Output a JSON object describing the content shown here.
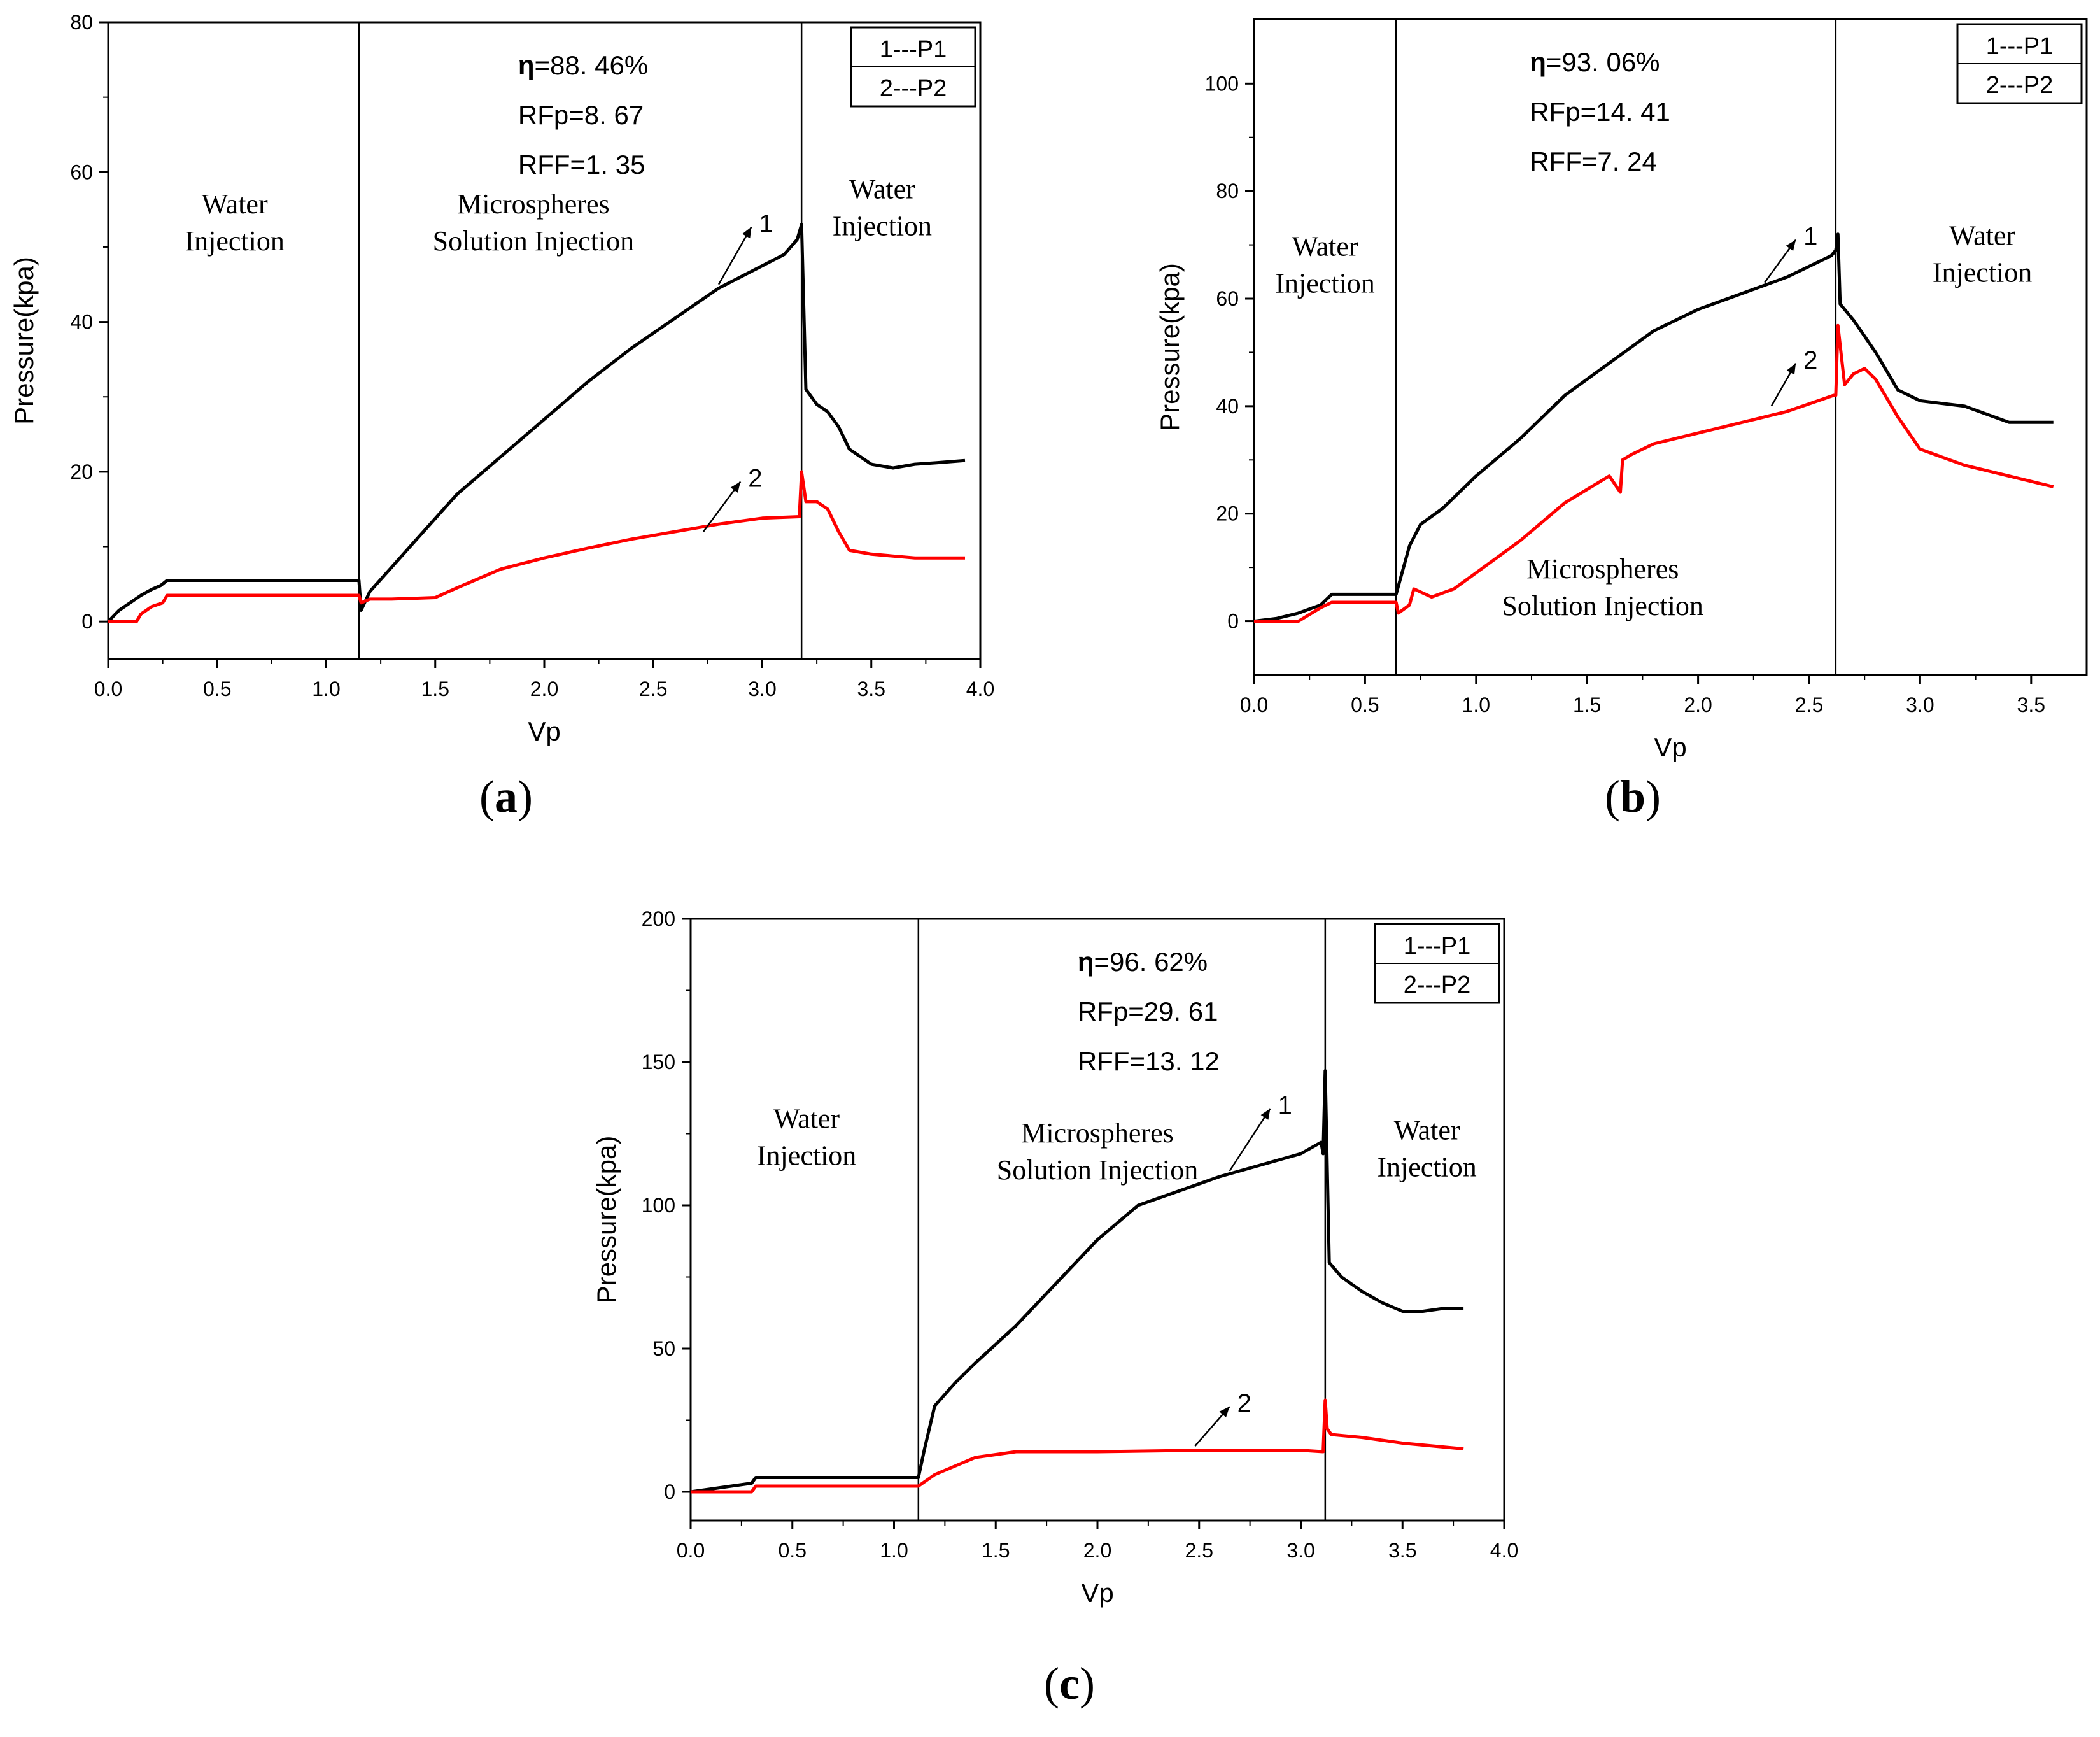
{
  "chart_data": [
    {
      "id": "a",
      "type": "line",
      "panel_label": "a",
      "xlabel": "Vp",
      "ylabel": "Pressure(kpa)",
      "xlim": [
        0,
        4.0
      ],
      "ylim": [
        -5,
        80
      ],
      "xticks": [
        "0.0",
        "0.5",
        "1.0",
        "1.5",
        "2.0",
        "2.5",
        "3.0",
        "3.5",
        "4.0"
      ],
      "xtick_values": [
        0,
        0.5,
        1.0,
        1.5,
        2.0,
        2.5,
        3.0,
        3.5,
        4.0
      ],
      "yticks": [
        "0",
        "20",
        "40",
        "60",
        "80"
      ],
      "ytick_values": [
        0,
        20,
        40,
        60,
        80
      ],
      "phase_boundaries": [
        1.15,
        3.18
      ],
      "phases": [
        {
          "line1": "Water",
          "line2": "Injection",
          "x": 0.58,
          "y": 54.5
        },
        {
          "line1": "Microspheres",
          "line2": "Solution Injection",
          "x": 1.95,
          "y": 54.5
        },
        {
          "line1": "Water",
          "line2": "Injection",
          "x": 3.55,
          "y": 56.5
        }
      ],
      "stats": [
        {
          "key": "η",
          "value": "=88. 46%"
        },
        {
          "key": "RFp",
          "value": "=8. 67"
        },
        {
          "key": "RFF",
          "value": "=1. 35"
        }
      ],
      "legend": [
        "1---P1",
        "2---P2"
      ],
      "curve_labels": [
        {
          "text": "1",
          "x": 2.95,
          "y": 52,
          "ax": 2.8,
          "ay": 45
        },
        {
          "text": "2",
          "x": 2.9,
          "y": 18,
          "ax": 2.73,
          "ay": 12
        }
      ],
      "series": [
        {
          "name": "P1",
          "label": "1",
          "color": "#000000",
          "x": [
            0,
            0.05,
            0.1,
            0.15,
            0.2,
            0.24,
            0.27,
            0.3,
            1.15,
            1.16,
            1.2,
            1.4,
            1.6,
            1.8,
            2.0,
            2.2,
            2.4,
            2.6,
            2.8,
            3.0,
            3.1,
            3.16,
            3.18,
            3.2,
            3.25,
            3.3,
            3.35,
            3.4,
            3.5,
            3.6,
            3.7,
            3.8,
            3.93
          ],
          "y": [
            0,
            1.5,
            2.5,
            3.5,
            4.3,
            4.8,
            5.5,
            5.5,
            5.5,
            1.5,
            4,
            10.5,
            17,
            22,
            27,
            32,
            36.5,
            40.5,
            44.5,
            47.5,
            49,
            51,
            53,
            31,
            29,
            28,
            26,
            23,
            21,
            20.5,
            21,
            21.2,
            21.5
          ]
        },
        {
          "name": "P2",
          "label": "2",
          "color": "#ff0000",
          "x": [
            0,
            0.13,
            0.15,
            0.2,
            0.25,
            0.27,
            1.15,
            1.16,
            1.2,
            1.3,
            1.5,
            1.6,
            1.8,
            2.0,
            2.2,
            2.4,
            2.6,
            2.8,
            3.0,
            3.17,
            3.18,
            3.2,
            3.25,
            3.3,
            3.35,
            3.4,
            3.5,
            3.7,
            3.93
          ],
          "y": [
            0,
            0,
            1,
            2,
            2.5,
            3.5,
            3.5,
            2.5,
            3,
            3,
            3.2,
            4.5,
            7,
            8.5,
            9.8,
            11,
            12,
            13,
            13.8,
            14,
            20,
            16,
            16,
            15,
            12,
            9.5,
            9,
            8.5,
            8.5
          ]
        }
      ]
    },
    {
      "id": "b",
      "type": "line",
      "panel_label": "b",
      "xlabel": "Vp",
      "ylabel": "Pressure(kpa)",
      "xlim": [
        0,
        3.75
      ],
      "ylim": [
        -10,
        112
      ],
      "xticks": [
        "0.0",
        "0.5",
        "1.0",
        "1.5",
        "2.0",
        "2.5",
        "3.0",
        "3.5"
      ],
      "xtick_values": [
        0,
        0.5,
        1.0,
        1.5,
        2.0,
        2.5,
        3.0,
        3.5
      ],
      "yticks": [
        "0",
        "20",
        "40",
        "60",
        "80",
        "100"
      ],
      "ytick_values": [
        0,
        20,
        40,
        60,
        80,
        100
      ],
      "phase_boundaries": [
        0.64,
        2.62
      ],
      "phases": [
        {
          "line1": "Water",
          "line2": "Injection",
          "x": 0.32,
          "y": 68
        },
        {
          "line1": "Microspheres",
          "line2": "Solution Injection",
          "x": 1.57,
          "y": 8
        },
        {
          "line1": "Water",
          "line2": "Injection",
          "x": 3.28,
          "y": 70
        }
      ],
      "stats": [
        {
          "key": "η",
          "value": "=93. 06%"
        },
        {
          "key": "RFp",
          "value": "=14. 41"
        },
        {
          "key": "RFF",
          "value": "=7. 24"
        }
      ],
      "legend": [
        "1---P1",
        "2---P2"
      ],
      "curve_labels": [
        {
          "text": "1",
          "x": 2.44,
          "y": 70,
          "ax": 2.3,
          "ay": 63
        },
        {
          "text": "2",
          "x": 2.44,
          "y": 47,
          "ax": 2.33,
          "ay": 40
        }
      ],
      "series": [
        {
          "name": "P1",
          "label": "1",
          "color": "#000000",
          "x": [
            0,
            0.1,
            0.2,
            0.3,
            0.35,
            0.64,
            0.66,
            0.7,
            0.75,
            0.85,
            1.0,
            1.2,
            1.4,
            1.6,
            1.8,
            2.0,
            2.2,
            2.4,
            2.6,
            2.62,
            2.63,
            2.64,
            2.7,
            2.8,
            2.9,
            3.0,
            3.2,
            3.4,
            3.6
          ],
          "y": [
            0,
            0.5,
            1.5,
            3,
            5,
            5,
            8,
            14,
            18,
            21,
            27,
            34,
            42,
            48,
            54,
            58,
            61,
            64,
            68,
            69,
            72,
            59,
            56,
            50,
            43,
            41,
            40,
            37,
            37
          ]
        },
        {
          "name": "P2",
          "label": "2",
          "color": "#ff0000",
          "x": [
            0,
            0.2,
            0.3,
            0.35,
            0.64,
            0.65,
            0.7,
            0.72,
            0.8,
            0.9,
            1.0,
            1.2,
            1.4,
            1.6,
            1.65,
            1.66,
            1.7,
            1.8,
            2.0,
            2.2,
            2.4,
            2.61,
            2.62,
            2.63,
            2.66,
            2.7,
            2.75,
            2.8,
            2.9,
            3.0,
            3.2,
            3.4,
            3.6
          ],
          "y": [
            0,
            0,
            2.5,
            3.5,
            3.5,
            1.5,
            3,
            6,
            4.5,
            6,
            9,
            15,
            22,
            27,
            24,
            30,
            31,
            33,
            35,
            37,
            39,
            42,
            42,
            55,
            44,
            46,
            47,
            45,
            38,
            32,
            29,
            27,
            25
          ]
        }
      ]
    },
    {
      "id": "c",
      "type": "line",
      "panel_label": "c",
      "xlabel": "Vp",
      "ylabel": "Pressure(kpa)",
      "xlim": [
        0,
        4.0
      ],
      "ylim": [
        -10,
        200
      ],
      "xticks": [
        "0.0",
        "0.5",
        "1.0",
        "1.5",
        "2.0",
        "2.5",
        "3.0",
        "3.5",
        "4.0"
      ],
      "xtick_values": [
        0,
        0.5,
        1.0,
        1.5,
        2.0,
        2.5,
        3.0,
        3.5,
        4.0
      ],
      "yticks": [
        "0",
        "50",
        "100",
        "150",
        "200"
      ],
      "ytick_values": [
        0,
        50,
        100,
        150,
        200
      ],
      "phase_boundaries": [
        1.12,
        3.12
      ],
      "phases": [
        {
          "line1": "Water",
          "line2": "Injection",
          "x": 0.57,
          "y": 127
        },
        {
          "line1": "Microspheres",
          "line2": "Solution Injection",
          "x": 2.0,
          "y": 122
        },
        {
          "line1": "Water",
          "line2": "Injection",
          "x": 3.62,
          "y": 123
        }
      ],
      "stats": [
        {
          "key": "η",
          "value": "=96. 62%"
        },
        {
          "key": "RFp",
          "value": "=29. 61"
        },
        {
          "key": "RFF",
          "value": "=13. 12"
        }
      ],
      "legend": [
        "1---P1",
        "2---P2"
      ],
      "curve_labels": [
        {
          "text": "1",
          "x": 2.85,
          "y": 132,
          "ax": 2.65,
          "ay": 112
        },
        {
          "text": "2",
          "x": 2.65,
          "y": 28,
          "ax": 2.48,
          "ay": 16
        }
      ],
      "series": [
        {
          "name": "P1",
          "label": "1",
          "color": "#000000",
          "x": [
            0,
            0.1,
            0.2,
            0.3,
            0.32,
            1.12,
            1.15,
            1.2,
            1.3,
            1.4,
            1.6,
            1.8,
            2.0,
            2.2,
            2.4,
            2.6,
            2.8,
            3.0,
            3.1,
            3.11,
            3.12,
            3.14,
            3.2,
            3.3,
            3.4,
            3.5,
            3.6,
            3.7,
            3.8
          ],
          "y": [
            0,
            1,
            2,
            3,
            5,
            5,
            15,
            30,
            38,
            45,
            58,
            73,
            88,
            100,
            105,
            110,
            114,
            118,
            122,
            118,
            147,
            80,
            75,
            70,
            66,
            63,
            63,
            64,
            64
          ]
        },
        {
          "name": "P2",
          "label": "2",
          "color": "#ff0000",
          "x": [
            0,
            0.3,
            0.32,
            1.12,
            1.2,
            1.3,
            1.4,
            1.5,
            1.6,
            2.0,
            2.5,
            3.0,
            3.11,
            3.12,
            3.13,
            3.15,
            3.3,
            3.5,
            3.8
          ],
          "y": [
            0,
            0,
            2,
            2,
            6,
            9,
            12,
            13,
            14,
            14,
            14.5,
            14.5,
            14,
            32,
            22,
            20,
            19,
            17,
            15
          ]
        }
      ]
    }
  ]
}
